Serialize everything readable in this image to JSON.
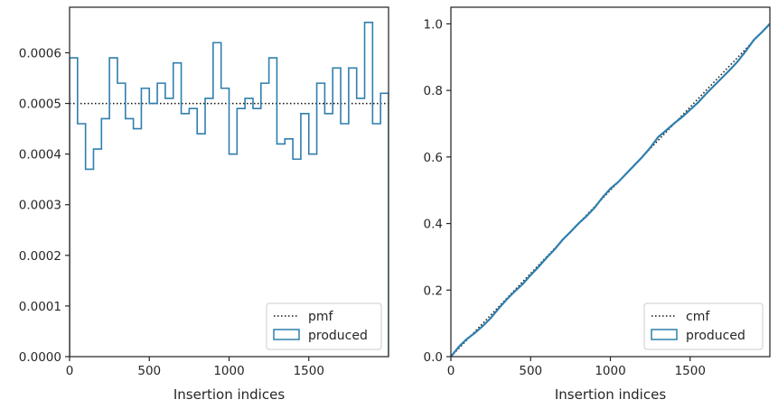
{
  "colors": {
    "produced": "#2f7fae",
    "reference": "#111111",
    "spine": "#262626",
    "background": "#ffffff"
  },
  "chart_data": [
    {
      "type": "histogram-step",
      "xlabel": "Insertion indices",
      "ylabel": "",
      "xlim": [
        0,
        2000
      ],
      "ylim": [
        0,
        0.00069
      ],
      "xticks": [
        0,
        500,
        1000,
        1500
      ],
      "xtick_labels": [
        "0",
        "500",
        "1000",
        "1500"
      ],
      "yticks": [
        0,
        0.0001,
        0.0002,
        0.0003,
        0.0004,
        0.0005,
        0.0006
      ],
      "ytick_labels": [
        "0.0000",
        "0.0001",
        "0.0002",
        "0.0003",
        "0.0004",
        "0.0005",
        "0.0006"
      ],
      "grid": false,
      "legend_position": "lower-right",
      "legend_entries": [
        "pmf",
        "produced"
      ],
      "series": [
        {
          "name": "pmf",
          "style": "dotted",
          "x": [
            0,
            2000
          ],
          "y": [
            0.0005,
            0.0005
          ]
        },
        {
          "name": "produced",
          "style": "step",
          "bin_edges": [
            0,
            50,
            100,
            150,
            200,
            250,
            300,
            350,
            400,
            450,
            500,
            550,
            600,
            650,
            700,
            750,
            800,
            850,
            900,
            950,
            1000,
            1050,
            1100,
            1150,
            1200,
            1250,
            1300,
            1350,
            1400,
            1450,
            1500,
            1550,
            1600,
            1650,
            1700,
            1750,
            1800,
            1850,
            1900,
            1950,
            2000
          ],
          "values": [
            0.00059,
            0.00046,
            0.00037,
            0.00041,
            0.00047,
            0.00059,
            0.00054,
            0.00047,
            0.00045,
            0.00053,
            0.0005,
            0.00054,
            0.00051,
            0.00058,
            0.00048,
            0.00049,
            0.00044,
            0.00051,
            0.00062,
            0.00053,
            0.0004,
            0.00049,
            0.00051,
            0.00049,
            0.00054,
            0.00059,
            0.00042,
            0.00043,
            0.00039,
            0.00048,
            0.0004,
            0.00054,
            0.00048,
            0.00057,
            0.00046,
            0.00057,
            0.00051,
            0.00066,
            0.00046,
            0.00052
          ]
        }
      ]
    },
    {
      "type": "line",
      "xlabel": "Insertion indices",
      "ylabel": "",
      "xlim": [
        0,
        2000
      ],
      "ylim": [
        0,
        1.05
      ],
      "xticks": [
        0,
        500,
        1000,
        1500
      ],
      "xtick_labels": [
        "0",
        "500",
        "1000",
        "1500"
      ],
      "yticks": [
        0,
        0.2,
        0.4,
        0.6,
        0.8,
        1.0
      ],
      "ytick_labels": [
        "0.0",
        "0.2",
        "0.4",
        "0.6",
        "0.8",
        "1.0"
      ],
      "grid": false,
      "legend_position": "lower-right",
      "legend_entries": [
        "cmf",
        "produced"
      ],
      "series": [
        {
          "name": "cmf",
          "style": "dotted",
          "x": [
            0,
            2000
          ],
          "y": [
            0,
            1.0
          ]
        },
        {
          "name": "produced",
          "style": "line",
          "x": [
            0,
            50,
            100,
            150,
            200,
            250,
            300,
            350,
            400,
            450,
            500,
            550,
            600,
            650,
            700,
            750,
            800,
            850,
            900,
            950,
            1000,
            1050,
            1100,
            1150,
            1200,
            1250,
            1300,
            1350,
            1400,
            1450,
            1500,
            1550,
            1600,
            1650,
            1700,
            1750,
            1800,
            1850,
            1900,
            1950,
            2000
          ],
          "y": [
            0,
            0.03,
            0.053,
            0.071,
            0.092,
            0.116,
            0.145,
            0.172,
            0.196,
            0.218,
            0.245,
            0.27,
            0.297,
            0.322,
            0.351,
            0.375,
            0.4,
            0.422,
            0.447,
            0.478,
            0.505,
            0.525,
            0.55,
            0.575,
            0.6,
            0.628,
            0.66,
            0.68,
            0.701,
            0.72,
            0.742,
            0.764,
            0.79,
            0.814,
            0.838,
            0.862,
            0.888,
            0.919,
            0.952,
            0.975,
            1.0
          ]
        }
      ]
    }
  ]
}
